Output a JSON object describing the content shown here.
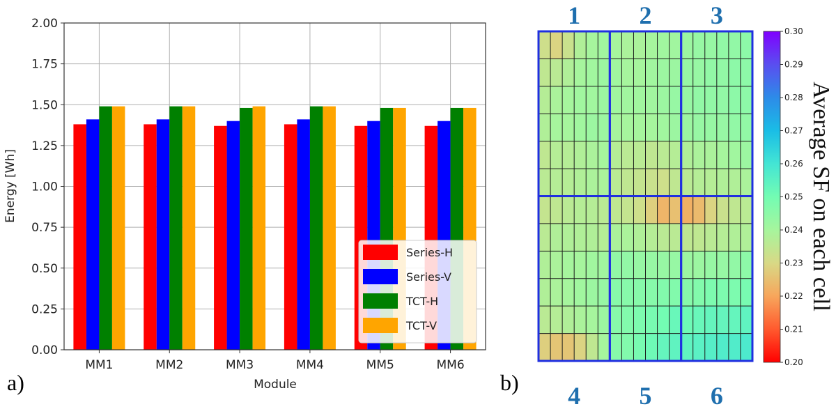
{
  "panels": {
    "a_label": "a)",
    "b_label": "b)"
  },
  "chart_data": [
    {
      "type": "bar",
      "xlabel": "Module",
      "ylabel": "Energy [Wh]",
      "ylim": [
        0,
        2.0
      ],
      "yticks": [
        "0.00",
        "0.25",
        "0.50",
        "0.75",
        "1.00",
        "1.25",
        "1.50",
        "1.75",
        "2.00"
      ],
      "grid": true,
      "legend_position": "lower-right",
      "categories": [
        "MM1",
        "MM2",
        "MM3",
        "MM4",
        "MM5",
        "MM6"
      ],
      "series": [
        {
          "name": "Series-H",
          "color": "#ff0000",
          "values": [
            1.38,
            1.38,
            1.37,
            1.38,
            1.37,
            1.37
          ]
        },
        {
          "name": "Series-V",
          "color": "#0000ff",
          "values": [
            1.41,
            1.41,
            1.4,
            1.41,
            1.4,
            1.4
          ]
        },
        {
          "name": "TCT-H",
          "color": "#008000",
          "values": [
            1.49,
            1.49,
            1.48,
            1.49,
            1.48,
            1.48
          ]
        },
        {
          "name": "TCT-V",
          "color": "#ffa500",
          "values": [
            1.49,
            1.49,
            1.49,
            1.49,
            1.48,
            1.48
          ]
        }
      ]
    },
    {
      "type": "heatmap",
      "colorbar_title": "Average SF on each cell",
      "colorbar_range": [
        0.2,
        0.3
      ],
      "colorbar_ticks": [
        "0.30",
        "0.29",
        "0.28",
        "0.27",
        "0.26",
        "0.25",
        "0.24",
        "0.23",
        "0.22",
        "0.21",
        "0.20"
      ],
      "module_labels_top": [
        "1",
        "2",
        "3"
      ],
      "module_labels_bottom": [
        "4",
        "5",
        "6"
      ],
      "module_grid": [
        2,
        3
      ],
      "cells_per_module": [
        6,
        6
      ],
      "values": [
        [
          0.232,
          0.229,
          0.233,
          0.238,
          0.24,
          0.241,
          0.24,
          0.239,
          0.239,
          0.24,
          0.241,
          0.241,
          0.242,
          0.243,
          0.243,
          0.244,
          0.244,
          0.245
        ],
        [
          0.235,
          0.236,
          0.238,
          0.24,
          0.241,
          0.242,
          0.241,
          0.24,
          0.24,
          0.241,
          0.242,
          0.242,
          0.243,
          0.243,
          0.244,
          0.244,
          0.245,
          0.245
        ],
        [
          0.237,
          0.239,
          0.24,
          0.241,
          0.241,
          0.242,
          0.241,
          0.241,
          0.241,
          0.241,
          0.242,
          0.243,
          0.243,
          0.244,
          0.244,
          0.244,
          0.245,
          0.245
        ],
        [
          0.238,
          0.24,
          0.24,
          0.241,
          0.242,
          0.242,
          0.24,
          0.24,
          0.24,
          0.24,
          0.241,
          0.242,
          0.242,
          0.243,
          0.243,
          0.243,
          0.244,
          0.244
        ],
        [
          0.235,
          0.237,
          0.237,
          0.238,
          0.239,
          0.24,
          0.237,
          0.236,
          0.236,
          0.235,
          0.236,
          0.237,
          0.238,
          0.239,
          0.239,
          0.24,
          0.241,
          0.242
        ],
        [
          0.236,
          0.237,
          0.237,
          0.238,
          0.239,
          0.239,
          0.236,
          0.235,
          0.234,
          0.233,
          0.232,
          0.235,
          0.236,
          0.237,
          0.237,
          0.238,
          0.238,
          0.239
        ],
        [
          0.234,
          0.235,
          0.236,
          0.237,
          0.237,
          0.236,
          0.235,
          0.234,
          0.232,
          0.228,
          0.223,
          0.225,
          0.222,
          0.224,
          0.229,
          0.233,
          0.235,
          0.236
        ],
        [
          0.236,
          0.238,
          0.238,
          0.238,
          0.238,
          0.237,
          0.239,
          0.239,
          0.238,
          0.237,
          0.236,
          0.236,
          0.235,
          0.235,
          0.236,
          0.237,
          0.238,
          0.238
        ],
        [
          0.238,
          0.239,
          0.24,
          0.24,
          0.241,
          0.241,
          0.244,
          0.244,
          0.243,
          0.243,
          0.243,
          0.243,
          0.242,
          0.242,
          0.243,
          0.243,
          0.244,
          0.245
        ],
        [
          0.238,
          0.239,
          0.24,
          0.241,
          0.242,
          0.243,
          0.246,
          0.246,
          0.246,
          0.246,
          0.247,
          0.247,
          0.246,
          0.247,
          0.248,
          0.248,
          0.248,
          0.249
        ],
        [
          0.236,
          0.237,
          0.238,
          0.239,
          0.24,
          0.242,
          0.246,
          0.247,
          0.248,
          0.249,
          0.25,
          0.252,
          0.251,
          0.252,
          0.253,
          0.253,
          0.253,
          0.254
        ],
        [
          0.228,
          0.226,
          0.226,
          0.229,
          0.235,
          0.24,
          0.246,
          0.247,
          0.249,
          0.251,
          0.253,
          0.254,
          0.254,
          0.255,
          0.256,
          0.257,
          0.257,
          0.258
        ]
      ]
    }
  ]
}
